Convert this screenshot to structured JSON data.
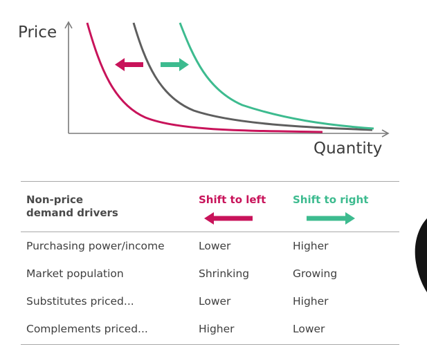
{
  "diagram": {
    "ylabel": "Price",
    "xlabel": "Quantity",
    "colors": {
      "left": "#c8135a",
      "original": "#5e5e5e",
      "right": "#3dbb8f",
      "axis": "#7a7a7a"
    }
  },
  "table": {
    "header": {
      "col1": "Non-price\ndemand drivers",
      "col2": "Shift to left",
      "col3": "Shift to right"
    },
    "rows": [
      {
        "driver": "Purchasing power/income",
        "left": "Lower",
        "right": "Higher"
      },
      {
        "driver": "Market population",
        "left": "Shrinking",
        "right": "Growing"
      },
      {
        "driver": "Substitutes priced...",
        "left": "Lower",
        "right": "Higher"
      },
      {
        "driver": "Complements priced...",
        "left": "Higher",
        "right": "Lower"
      }
    ]
  }
}
